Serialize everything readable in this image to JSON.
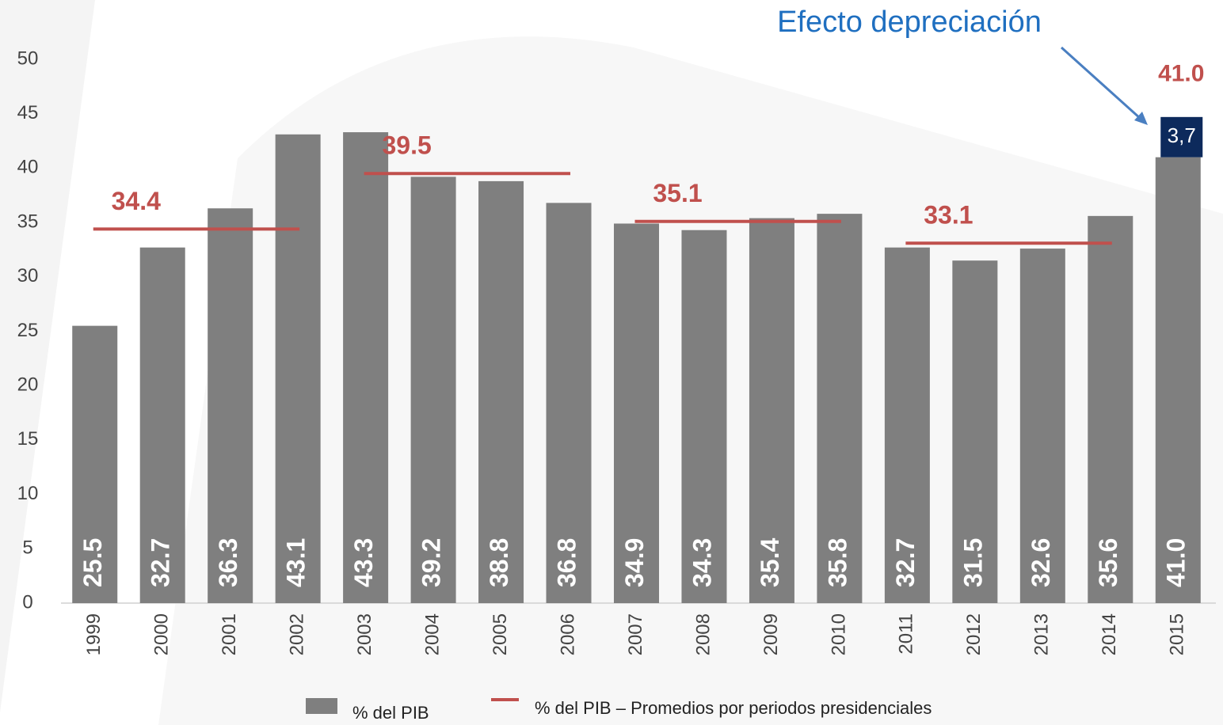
{
  "chart_data": {
    "type": "bar",
    "categories": [
      "1999",
      "2000",
      "2001",
      "2002",
      "2003",
      "2004",
      "2005",
      "2006",
      "2007",
      "2008",
      "2009",
      "2010",
      "2011",
      "2012",
      "2013",
      "2014",
      "2015"
    ],
    "series": [
      {
        "name": "% del PIB",
        "color": "#7f7f7f",
        "values": [
          25.5,
          32.7,
          36.3,
          43.1,
          43.3,
          39.2,
          38.8,
          36.8,
          34.9,
          34.3,
          35.4,
          35.8,
          32.7,
          31.5,
          32.6,
          35.6,
          41.0
        ],
        "value_labels": [
          "25.5",
          "32.7",
          "36.3",
          "43.1",
          "43.3",
          "39.2",
          "38.8",
          "36.8",
          "34.9",
          "34.3",
          "35.4",
          "35.8",
          "32.7",
          "31.5",
          "32.6",
          "35.6",
          "41.0"
        ]
      }
    ],
    "averages": {
      "name": "% del PIB – Promedios por periodos presidenciales",
      "color": "#c0504d",
      "periods": [
        {
          "value": 34.4,
          "from": "1999",
          "to": "2002"
        },
        {
          "value": 39.5,
          "from": "2003",
          "to": "2006"
        },
        {
          "value": 35.1,
          "from": "2007",
          "to": "2010"
        },
        {
          "value": 33.1,
          "from": "2011",
          "to": "2014"
        }
      ]
    },
    "highlight": {
      "text": "Efecto depreciación",
      "value": 41.0,
      "value_label": "41.0",
      "box_value": 3.7,
      "box_label": "3,7",
      "box_color": "#0d2a5c",
      "text_color": "#1f6fc0"
    },
    "ylim": [
      0,
      50
    ],
    "yticks": [
      0,
      5,
      10,
      15,
      20,
      25,
      30,
      35,
      40,
      45,
      50
    ],
    "grid": false
  }
}
